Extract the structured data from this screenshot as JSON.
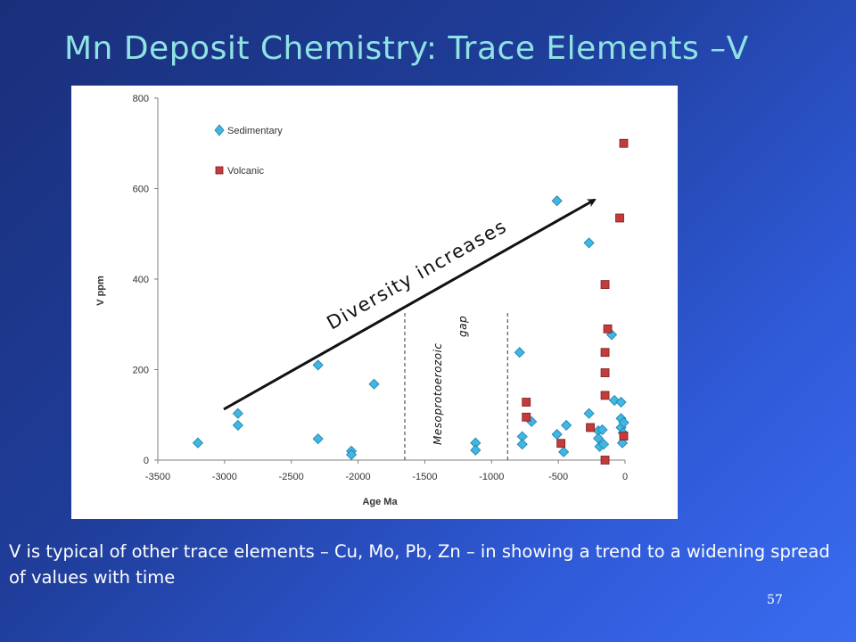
{
  "slide": {
    "title": "Mn Deposit Chemistry: Trace Elements –V",
    "caption": "V is typical of other trace elements – Cu, Mo, Pb, Zn – in showing a trend to a widening spread of values with time",
    "page_number": "57"
  },
  "colors": {
    "sedimentary": "#3fb6e3",
    "volcanic": "#c43b3b",
    "title": "#8fe3e3"
  },
  "chart_data": {
    "type": "scatter",
    "xlabel": "Age Ma",
    "ylabel": "V ppm",
    "xlim": [
      -3500,
      0
    ],
    "ylim": [
      0,
      800
    ],
    "xticks": [
      "-3500",
      "-3000",
      "-2500",
      "-2000",
      "-1500",
      "-1000",
      "-500",
      "0"
    ],
    "yticks": [
      "0",
      "200",
      "400",
      "600",
      "800"
    ],
    "legend_position": "top-left",
    "series": [
      {
        "name": "Sedimentary",
        "marker": "diamond",
        "points": [
          [
            -3200,
            38
          ],
          [
            -2900,
            103
          ],
          [
            -2900,
            77
          ],
          [
            -2300,
            210
          ],
          [
            -2300,
            47
          ],
          [
            -2050,
            20
          ],
          [
            -2050,
            12
          ],
          [
            -1880,
            168
          ],
          [
            -1120,
            38
          ],
          [
            -1120,
            22
          ],
          [
            -790,
            238
          ],
          [
            -770,
            52
          ],
          [
            -770,
            35
          ],
          [
            -700,
            85
          ],
          [
            -510,
            573
          ],
          [
            -510,
            57
          ],
          [
            -460,
            18
          ],
          [
            -440,
            77
          ],
          [
            -270,
            480
          ],
          [
            -270,
            103
          ],
          [
            -200,
            65
          ],
          [
            -200,
            48
          ],
          [
            -190,
            30
          ],
          [
            -170,
            67
          ],
          [
            -160,
            35
          ],
          [
            -100,
            277
          ],
          [
            -80,
            132
          ],
          [
            -30,
            128
          ],
          [
            -30,
            92
          ],
          [
            -30,
            72
          ],
          [
            -20,
            38
          ],
          [
            -15,
            60
          ],
          [
            -10,
            83
          ]
        ]
      },
      {
        "name": "Volcanic",
        "marker": "square",
        "points": [
          [
            -10,
            700
          ],
          [
            -40,
            535
          ],
          [
            -150,
            388
          ],
          [
            -130,
            290
          ],
          [
            -150,
            238
          ],
          [
            -150,
            193
          ],
          [
            -150,
            143
          ],
          [
            -740,
            128
          ],
          [
            -740,
            95
          ],
          [
            -260,
            72
          ],
          [
            -480,
            37
          ],
          [
            -10,
            53
          ],
          [
            -150,
            0
          ]
        ]
      }
    ],
    "annotations": {
      "trend_label": "Diversity increases",
      "gap_label_line1": "Mesoprotoerozoic",
      "gap_label_line2": "gap",
      "gap_range": [
        -1650,
        -880
      ]
    }
  }
}
